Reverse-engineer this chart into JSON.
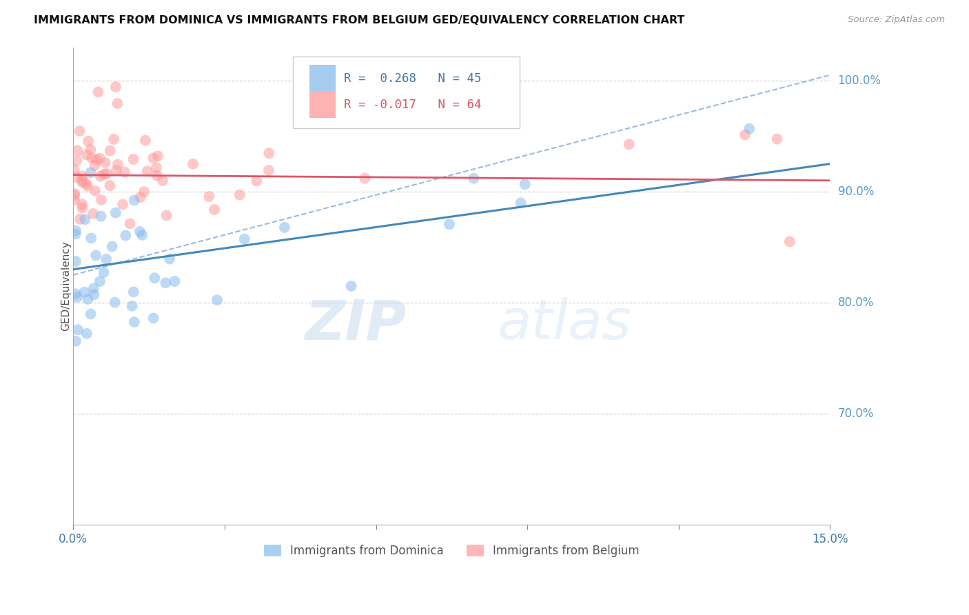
{
  "title": "IMMIGRANTS FROM DOMINICA VS IMMIGRANTS FROM BELGIUM GED/EQUIVALENCY CORRELATION CHART",
  "source": "Source: ZipAtlas.com",
  "ylabel": "GED/Equivalency",
  "right_yticks": [
    70.0,
    80.0,
    90.0,
    100.0
  ],
  "xlim": [
    0.0,
    15.0
  ],
  "ylim": [
    60.0,
    103.0
  ],
  "dominica_color": "#88BBEE",
  "belgium_color": "#FF9999",
  "trend_blue_color": "#4488BB",
  "trend_pink_color": "#DD5566",
  "dashed_color": "#99BBDD",
  "watermark_zip": "ZIP",
  "watermark_atlas": "atlas",
  "legend_R_blue": "R =  0.268",
  "legend_N_blue": "N = 45",
  "legend_R_pink": "R = -0.017",
  "legend_N_pink": "N = 64",
  "blue_trend_x0": 0.0,
  "blue_trend_y0": 83.0,
  "blue_trend_x1": 15.0,
  "blue_trend_y1": 92.5,
  "pink_trend_x0": 0.0,
  "pink_trend_y0": 91.5,
  "pink_trend_x1": 15.0,
  "pink_trend_y1": 91.0,
  "dashed_x0": 0.0,
  "dashed_y0": 82.5,
  "dashed_x1": 15.0,
  "dashed_y1": 100.5
}
